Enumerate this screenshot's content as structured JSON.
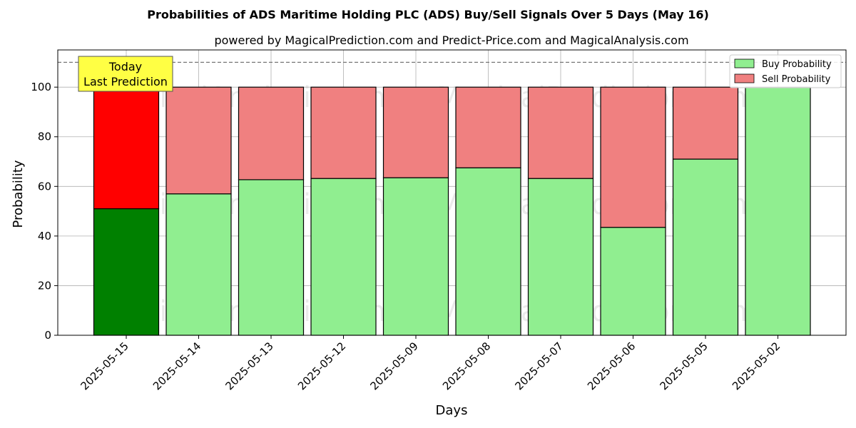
{
  "chart_data": {
    "type": "bar",
    "stacked": true,
    "title": "Probabilities of ADS Maritime Holding PLC (ADS) Buy/Sell Signals Over 5 Days (May 16)",
    "subtitle": "powered by MagicalPrediction.com and Predict-Price.com and MagicalAnalysis.com",
    "xlabel": "Days",
    "ylabel": "Probability",
    "ylim": [
      0,
      115
    ],
    "yticks": [
      0,
      20,
      40,
      60,
      80,
      100
    ],
    "reference_line": 110,
    "grid": true,
    "legend_position": "top-right",
    "categories": [
      "2025-05-15",
      "2025-05-14",
      "2025-05-13",
      "2025-05-12",
      "2025-05-09",
      "2025-05-08",
      "2025-05-07",
      "2025-05-06",
      "2025-05-05",
      "2025-05-02"
    ],
    "series": [
      {
        "name": "Buy Probability",
        "values": [
          51,
          57,
          62.7,
          63.2,
          63.5,
          67.5,
          63.2,
          43.5,
          71,
          100
        ]
      },
      {
        "name": "Sell Probability",
        "values": [
          49,
          43,
          37.3,
          36.8,
          36.5,
          32.5,
          36.8,
          56.5,
          29,
          0
        ]
      }
    ],
    "annotation": {
      "line1": "Today",
      "line2": "Last Prediction"
    },
    "watermarks": [
      "MagicalAnalysis.com",
      "MagicalPrediction.com"
    ]
  },
  "colors": {
    "buy": "#90ee90",
    "sell": "#f08080",
    "today_buy": "#008000",
    "today_sell": "#ff0000",
    "annotation_bg": "#ffff44"
  }
}
